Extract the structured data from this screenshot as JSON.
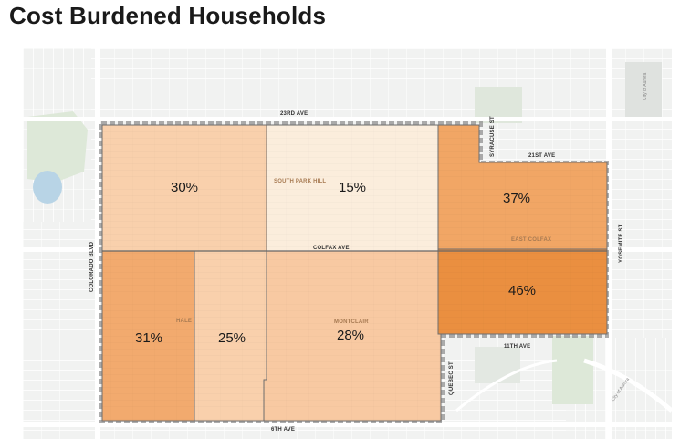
{
  "title": "Cost Burdened Households",
  "colors": {
    "background_map": "#f1f2f1",
    "streets": "#ffffff",
    "park": "#dde8d8",
    "water": "#b8d4e6",
    "boundary": "#6e6e6e",
    "pct_15": "#fbeddc",
    "pct_25_30": "#f9d0ac",
    "pct_28": "#f8c9a2",
    "pct_31": "#f2aa6e",
    "pct_37": "#f1a665",
    "pct_46": "#ea8f40"
  },
  "regions": [
    {
      "id": "northwest",
      "percent": "30%",
      "value": 30
    },
    {
      "id": "south-park-hill",
      "percent": "15%",
      "value": 15
    },
    {
      "id": "east-colfax-north",
      "percent": "37%",
      "value": 37
    },
    {
      "id": "east-colfax-south",
      "percent": "46%",
      "value": 46
    },
    {
      "id": "hale",
      "percent": "31%",
      "value": 31
    },
    {
      "id": "hale-east",
      "percent": "25%",
      "value": 25
    },
    {
      "id": "montclair",
      "percent": "28%",
      "value": 28
    }
  ],
  "neighborhoods": {
    "south_park_hill": "SOUTH PARK HILL",
    "east_colfax": "EAST COLFAX",
    "hale": "HALE",
    "montclair": "MONTCLAIR"
  },
  "streets": {
    "ave_23rd": "23RD AVE",
    "ave_21st": "21ST AVE",
    "colfax": "COLFAX AVE",
    "ave_11th": "11TH AVE",
    "ave_6th": "6TH AVE",
    "colorado_blvd": "COLORADO BLVD",
    "syracuse_st": "SYRACUSE ST",
    "yosemite_st": "YOSEMITE ST",
    "quebec_st": "QUEBEC ST"
  },
  "municipal_labels": {
    "aurora_north": "City of Aurora",
    "aurora_south": "City of Aurora"
  }
}
